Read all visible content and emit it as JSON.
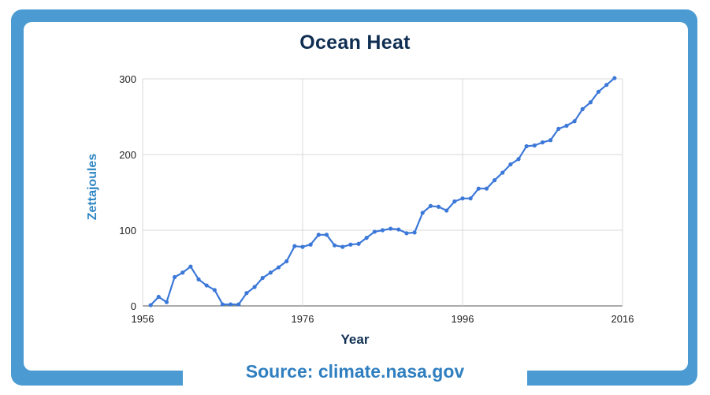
{
  "title": "Ocean Heat",
  "source": "Source: climate.nasa.gov",
  "colors": {
    "frame": "#4b9ad1",
    "title": "#0f2e52",
    "source": "#2f7fc0",
    "line": "#3c78d8",
    "ylabel": "#2f86c4",
    "grid": "#d9d9d9"
  },
  "chart_data": {
    "type": "line",
    "title": "Ocean Heat",
    "xlabel": "Year",
    "ylabel": "Zettajoules",
    "xlim": [
      1956,
      2016
    ],
    "ylim": [
      0,
      300
    ],
    "xticks": [
      1956,
      1976,
      1996,
      2016
    ],
    "yticks": [
      0,
      100,
      200,
      300
    ],
    "grid": true,
    "series": [
      {
        "x": [
          1957,
          1958,
          1959,
          1960,
          1961,
          1962,
          1963,
          1964,
          1965,
          1966,
          1967,
          1968,
          1969,
          1970,
          1971,
          1972,
          1973,
          1974,
          1975,
          1976,
          1977,
          1978,
          1979,
          1980,
          1981,
          1982,
          1983,
          1984,
          1985,
          1986,
          1987,
          1988,
          1989,
          1990,
          1991,
          1992,
          1993,
          1994,
          1995,
          1996,
          1997,
          1998,
          1999,
          2000,
          2001,
          2002,
          2003,
          2004,
          2005,
          2006,
          2007,
          2008,
          2009,
          2010,
          2011,
          2012,
          2013,
          2014,
          2015
        ],
        "values": [
          1,
          12,
          5,
          38,
          44,
          52,
          35,
          27,
          21,
          2,
          2,
          2,
          17,
          25,
          37,
          44,
          51,
          59,
          79,
          78,
          81,
          94,
          94,
          80,
          78,
          81,
          82,
          90,
          98,
          100,
          102,
          101,
          96,
          97,
          123,
          132,
          131,
          126,
          138,
          142,
          142,
          155,
          155,
          166,
          176,
          187,
          194,
          211,
          212,
          216,
          219,
          234,
          238,
          244,
          260,
          269,
          283,
          292,
          301
        ]
      }
    ]
  }
}
